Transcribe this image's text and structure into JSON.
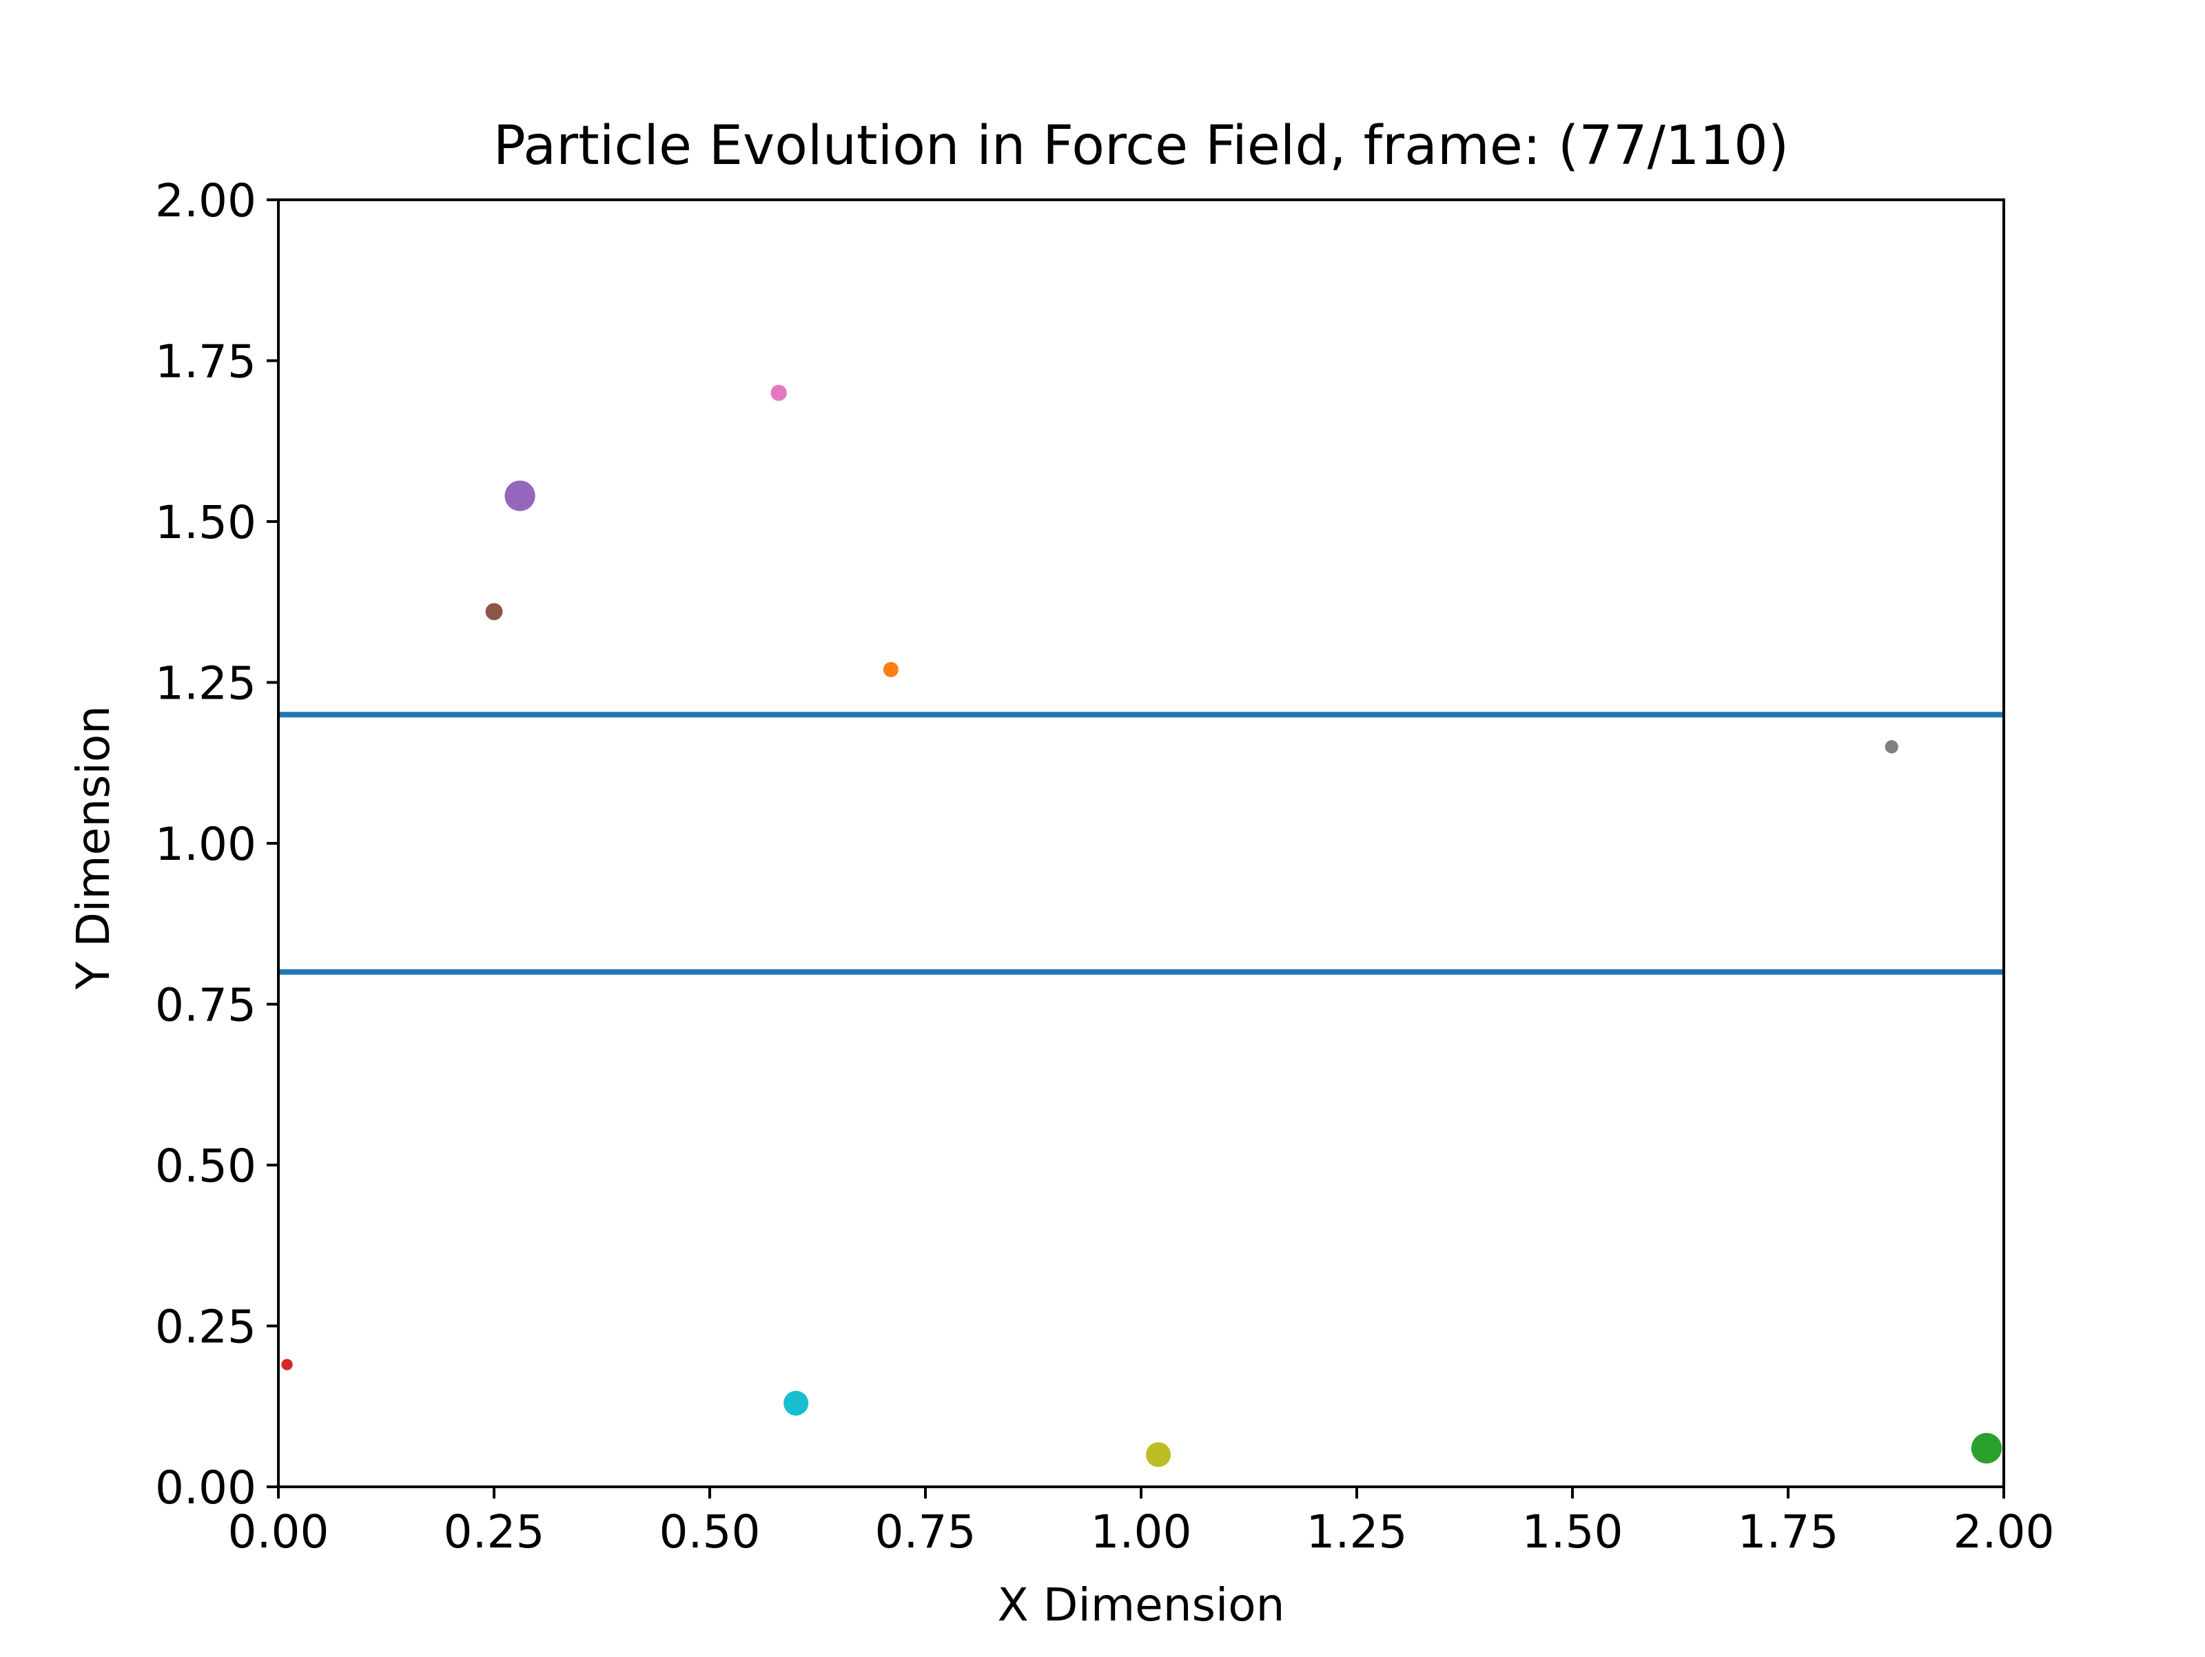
{
  "chart_data": {
    "type": "scatter",
    "title": "Particle Evolution in Force Field, frame: (77/110)",
    "xlabel": "X Dimension",
    "ylabel": "Y Dimension",
    "xlim": [
      0,
      2
    ],
    "ylim": [
      0,
      2
    ],
    "grid": false,
    "legend": "none",
    "xticks": [
      0,
      0.25,
      0.5,
      0.75,
      1.0,
      1.25,
      1.5,
      1.75,
      2.0
    ],
    "yticks": [
      0,
      0.25,
      0.5,
      0.75,
      1.0,
      1.25,
      1.5,
      1.75,
      2.0
    ],
    "xtick_labels": [
      "0.00",
      "0.25",
      "0.50",
      "0.75",
      "1.00",
      "1.25",
      "1.50",
      "1.75",
      "2.00"
    ],
    "ytick_labels": [
      "0.00",
      "0.25",
      "0.50",
      "0.75",
      "1.00",
      "1.25",
      "1.50",
      "1.75",
      "2.00"
    ],
    "hlines": [
      {
        "y": 1.2,
        "color": "#1f77b4"
      },
      {
        "y": 0.8,
        "color": "#1f77b4"
      }
    ],
    "points": [
      {
        "x": 0.01,
        "y": 0.19,
        "color": "#d62728",
        "relative_size": 0.3
      },
      {
        "x": 0.25,
        "y": 1.36,
        "color": "#8c564b",
        "relative_size": 0.6
      },
      {
        "x": 0.28,
        "y": 1.54,
        "color": "#9467bd",
        "relative_size": 1.3
      },
      {
        "x": 0.58,
        "y": 1.7,
        "color": "#e377c2",
        "relative_size": 0.55
      },
      {
        "x": 0.71,
        "y": 1.27,
        "color": "#ff7f0e",
        "relative_size": 0.5
      },
      {
        "x": 0.6,
        "y": 0.13,
        "color": "#17becf",
        "relative_size": 1.0
      },
      {
        "x": 1.02,
        "y": 0.05,
        "color": "#bcbd22",
        "relative_size": 1.0
      },
      {
        "x": 1.87,
        "y": 1.15,
        "color": "#7f7f7f",
        "relative_size": 0.4
      },
      {
        "x": 1.98,
        "y": 0.06,
        "color": "#2ca02c",
        "relative_size": 1.3
      }
    ]
  }
}
